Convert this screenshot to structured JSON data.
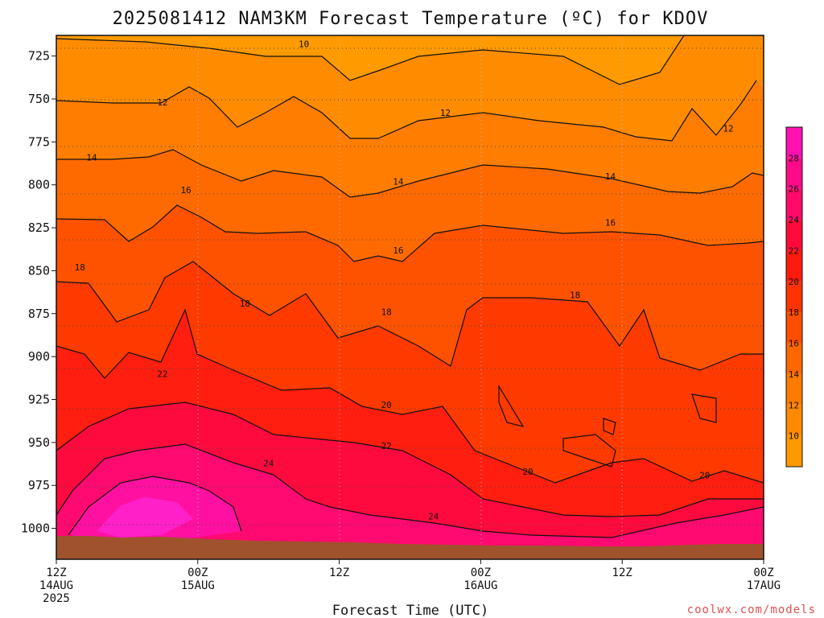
{
  "chart_data": {
    "type": "heatmap",
    "title": "2025081412 NAM3KM Forecast Temperature (ºC) for KDOV",
    "xlabel": "Forecast Time (UTC)",
    "ylabel": "",
    "credit": "coolwx.com/models",
    "y_ticks": [
      "725",
      "750",
      "775",
      "800",
      "825",
      "850",
      "875",
      "900",
      "925",
      "950",
      "975",
      "1000"
    ],
    "x_ticks": [
      {
        "line1": "12Z",
        "line2": "14AUG",
        "line3": "2025"
      },
      {
        "line1": "00Z",
        "line2": "15AUG",
        "line3": ""
      },
      {
        "line1": "12Z",
        "line2": "",
        "line3": ""
      },
      {
        "line1": "00Z",
        "line2": "16AUG",
        "line3": ""
      },
      {
        "line1": "12Z",
        "line2": "",
        "line3": ""
      },
      {
        "line1": "00Z",
        "line2": "17AUG",
        "line3": ""
      }
    ],
    "colorbar": {
      "levels": [
        8,
        10,
        12,
        14,
        16,
        18,
        20,
        22,
        24,
        26,
        28,
        30
      ],
      "labels": [
        "10",
        "12",
        "14",
        "16",
        "18",
        "20",
        "22",
        "24",
        "26",
        "28"
      ],
      "colors": [
        "#ff9900",
        "#ff8a00",
        "#ff7a00",
        "#ff6600",
        "#ff4d00",
        "#ff3300",
        "#ff1a10",
        "#ff0a3a",
        "#ff0a6a",
        "#ff0a8a",
        "#ff10b0",
        "#ff20d0"
      ]
    },
    "contour_labels": [
      {
        "text": "10",
        "time_h": 21,
        "p": 718
      },
      {
        "text": "12",
        "time_h": 9,
        "p": 752
      },
      {
        "text": "12",
        "time_h": 33,
        "p": 758
      },
      {
        "text": "12",
        "time_h": 57,
        "p": 767
      },
      {
        "text": "14",
        "time_h": 3,
        "p": 784
      },
      {
        "text": "14",
        "time_h": 29,
        "p": 798
      },
      {
        "text": "14",
        "time_h": 47,
        "p": 795
      },
      {
        "text": "16",
        "time_h": 11,
        "p": 803
      },
      {
        "text": "16",
        "time_h": 29,
        "p": 838
      },
      {
        "text": "16",
        "time_h": 47,
        "p": 822
      },
      {
        "text": "18",
        "time_h": 2,
        "p": 848
      },
      {
        "text": "18",
        "time_h": 16,
        "p": 869
      },
      {
        "text": "18",
        "time_h": 28,
        "p": 874
      },
      {
        "text": "18",
        "time_h": 44,
        "p": 864
      },
      {
        "text": "20",
        "time_h": 28,
        "p": 928
      },
      {
        "text": "20",
        "time_h": 40,
        "p": 967
      },
      {
        "text": "20",
        "time_h": 55,
        "p": 969
      },
      {
        "text": "22",
        "time_h": 9,
        "p": 910
      },
      {
        "text": "22",
        "time_h": 28,
        "p": 952
      },
      {
        "text": "24",
        "time_h": 18,
        "p": 962
      },
      {
        "text": "24",
        "time_h": 32,
        "p": 993
      }
    ]
  }
}
